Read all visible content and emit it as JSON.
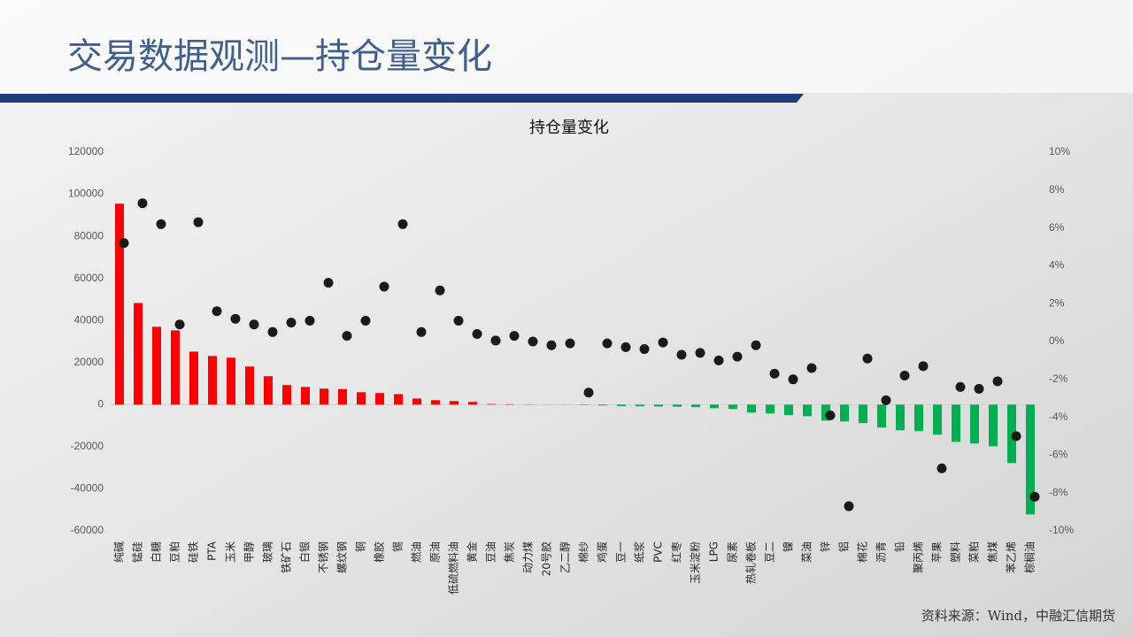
{
  "header": {
    "title": "交易数据观测—持仓量变化"
  },
  "source": "资料来源：Wind，中融汇信期货",
  "chart_data": {
    "type": "bar",
    "title": "持仓量变化",
    "categories": [
      "纯碱",
      "锰硅",
      "白糖",
      "豆粕",
      "硅铁",
      "PTA",
      "玉米",
      "甲醇",
      "玻璃",
      "铁矿石",
      "白银",
      "不锈钢",
      "螺纹钢",
      "铜",
      "橡胶",
      "锡",
      "燃油",
      "原油",
      "低硫燃料油",
      "黄金",
      "豆油",
      "焦炭",
      "动力煤",
      "20号胶",
      "乙二醇",
      "棉纱",
      "鸡蛋",
      "豆一",
      "纸浆",
      "PVC",
      "红枣",
      "玉米淀粉",
      "LPG",
      "尿素",
      "热轧卷板",
      "豆二",
      "镍",
      "菜油",
      "锌",
      "铝",
      "棉花",
      "沥青",
      "铅",
      "聚丙烯",
      "苹果",
      "塑料",
      "菜粕",
      "焦煤",
      "苯乙烯",
      "棕榈油"
    ],
    "series": [
      {
        "type": "bar",
        "color": "#ff0000",
        "negative_color": "#00b050",
        "values": [
          95500,
          48300,
          37000,
          35300,
          25200,
          23100,
          22300,
          18100,
          13500,
          9300,
          8400,
          7600,
          7400,
          5900,
          5500,
          5000,
          2900,
          2100,
          1700,
          1300,
          300,
          200,
          100,
          50,
          -50,
          -200,
          -400,
          -700,
          -800,
          -900,
          -1000,
          -1200,
          -1700,
          -2100,
          -3800,
          -4200,
          -5000,
          -5500,
          -7600,
          -8000,
          -8800,
          -10900,
          -12200,
          -12600,
          -14300,
          -17700,
          -18500,
          -19800,
          -27800,
          -52200
        ]
      },
      {
        "type": "scatter",
        "axis": "y2",
        "color": "#1a1a1a",
        "values": [
          5.2,
          7.3,
          6.2,
          0.9,
          6.3,
          1.6,
          1.2,
          0.9,
          0.5,
          1.0,
          1.1,
          3.1,
          0.3,
          1.1,
          2.9,
          6.2,
          0.5,
          2.7,
          1.1,
          0.4,
          0.05,
          0.3,
          0.0,
          -0.2,
          -0.1,
          -2.7,
          -0.1,
          -0.3,
          -0.4,
          -0.05,
          -0.7,
          -0.6,
          -1.0,
          -0.8,
          -0.2,
          -1.7,
          -2.0,
          -1.4,
          -3.9,
          -8.7,
          -0.9,
          -3.1,
          -1.8,
          -1.3,
          -6.7,
          -2.4,
          -2.5,
          -2.1,
          -5.0,
          -8.2
        ]
      }
    ],
    "ylim": [
      -60000,
      120000
    ],
    "yticks": [
      -60000,
      -40000,
      -20000,
      0,
      20000,
      40000,
      60000,
      80000,
      100000,
      120000
    ],
    "y2lim": [
      -10,
      10
    ],
    "y2ticks": [
      {
        "value": -10,
        "label": "-10%"
      },
      {
        "value": -8,
        "label": "-8%"
      },
      {
        "value": -6,
        "label": "-6%"
      },
      {
        "value": -4,
        "label": "-4%"
      },
      {
        "value": -2,
        "label": "-2%"
      },
      {
        "value": 0,
        "label": "0%"
      },
      {
        "value": 2,
        "label": "2%"
      },
      {
        "value": 4,
        "label": "4%"
      },
      {
        "value": 6,
        "label": "6%"
      },
      {
        "value": 8,
        "label": "8%"
      },
      {
        "value": 10,
        "label": "10%"
      }
    ]
  }
}
